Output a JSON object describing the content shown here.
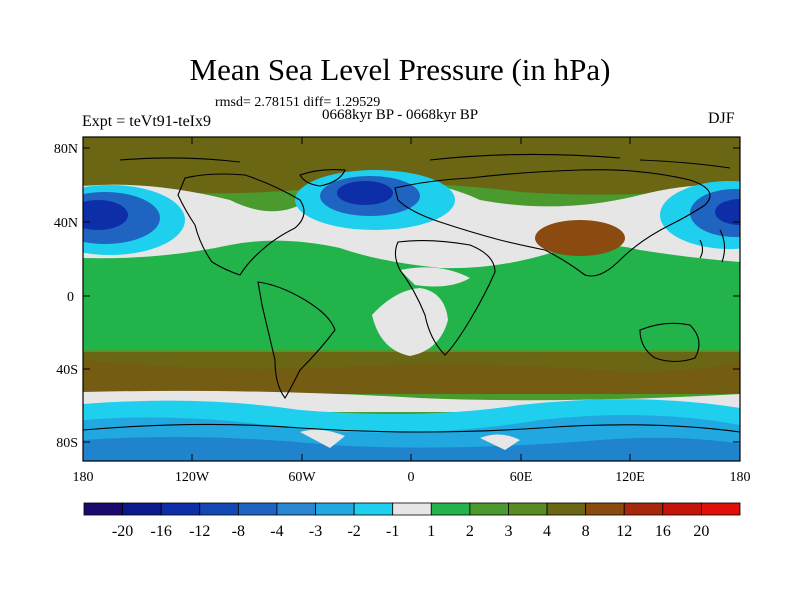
{
  "title": "Mean Sea Level Pressure (in hPa)",
  "stats": "rmsd= 2.78151 diff= 1.29529",
  "period": "0668kyr BP - 0668kyr BP",
  "expt": "Expt = teVt91-teIx9",
  "season": "DJF",
  "y_axis_labels": [
    "80N",
    "40N",
    "0",
    "40S",
    "80S"
  ],
  "x_axis_labels": [
    "180",
    "120W",
    "60W",
    "0",
    "60E",
    "120E",
    "180"
  ],
  "colorbar": {
    "labels": [
      "-20",
      "-16",
      "-12",
      "-8",
      "-4",
      "-3",
      "-2",
      "-1",
      "1",
      "2",
      "3",
      "4",
      "8",
      "12",
      "16",
      "20"
    ],
    "colors": [
      "#1a0a6e",
      "#0a1a8c",
      "#0e2ea8",
      "#1448b4",
      "#1e64c0",
      "#2a86d0",
      "#22a8e0",
      "#1ed0ee",
      "#e6e6e6",
      "#22b44a",
      "#4a9a2e",
      "#5a8a22",
      "#6a6614",
      "#8a4a10",
      "#a8280e",
      "#c4140a",
      "#e01008"
    ]
  },
  "colors": {
    "high_land": "#6a6614",
    "mid_green": "#4a9a2e",
    "light_green": "#22b44a",
    "neutral": "#e6e6e6",
    "low_cyan": "#1ed0ee",
    "low_blue": "#1e64c0",
    "deep_blue": "#0e2ea8",
    "brown": "#8a4a10"
  }
}
